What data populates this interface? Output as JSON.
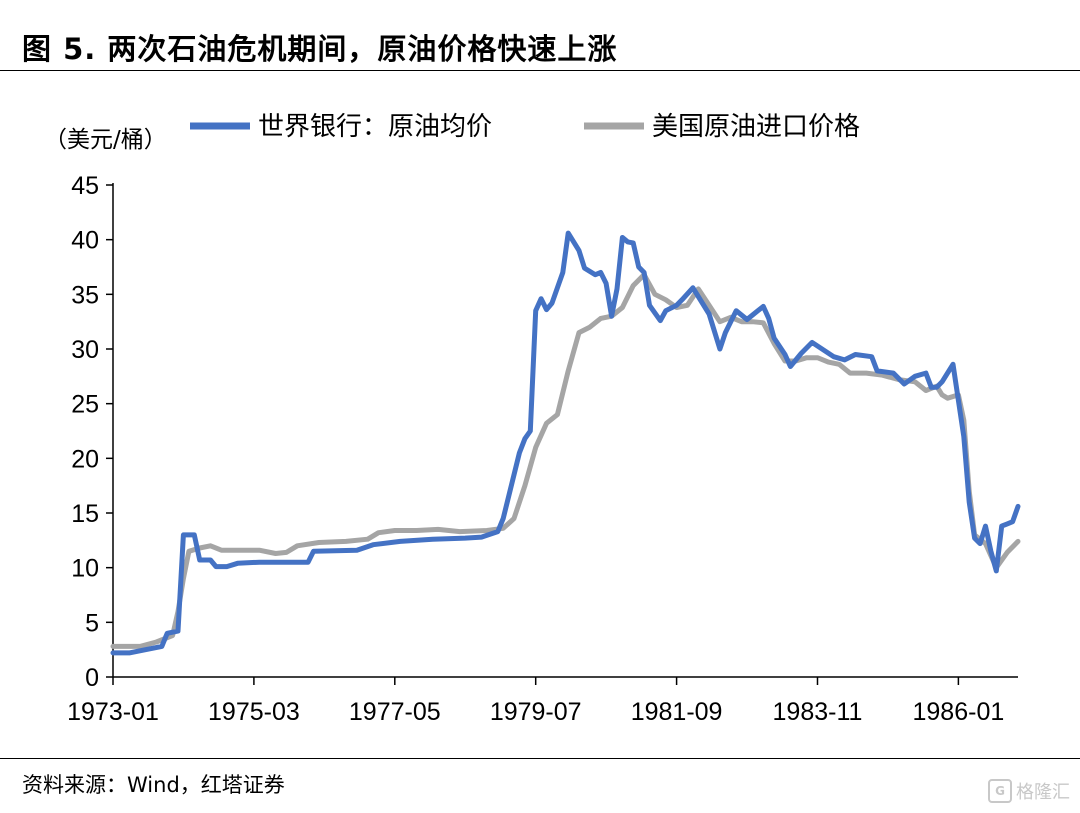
{
  "header": {
    "title": "图 5. 两次石油危机期间，原油价格快速上涨"
  },
  "footer": {
    "source": "资料来源：Wind，红塔证券",
    "watermark": "格隆汇",
    "watermark_icon": "G"
  },
  "colors": {
    "world_bank": "#4472C4",
    "us_import": "#A5A5A5"
  },
  "chart_data": {
    "type": "line",
    "unit_label": "（美元/桶）",
    "ylim": [
      0,
      45
    ],
    "yticks": [
      0,
      5,
      10,
      15,
      20,
      25,
      30,
      35,
      40,
      45
    ],
    "xticks": [
      "1973-01",
      "1975-03",
      "1977-05",
      "1979-07",
      "1981-09",
      "1983-11",
      "1986-01"
    ],
    "x_range": [
      "1973-01",
      "1986-12"
    ],
    "legend_position": "top",
    "grid": false,
    "series": [
      {
        "name": "世界银行：原油均价",
        "color": "#4472C4",
        "points": [
          [
            "1973-01",
            2.2
          ],
          [
            "1973-04",
            2.2
          ],
          [
            "1973-07",
            2.5
          ],
          [
            "1973-10",
            2.8
          ],
          [
            "1973-11",
            4.0
          ],
          [
            "1974-01",
            4.2
          ],
          [
            "1974-02",
            13.0
          ],
          [
            "1974-04",
            13.0
          ],
          [
            "1974-05",
            10.7
          ],
          [
            "1974-07",
            10.7
          ],
          [
            "1974-08",
            10.1
          ],
          [
            "1974-10",
            10.1
          ],
          [
            "1974-12",
            10.4
          ],
          [
            "1975-04",
            10.5
          ],
          [
            "1975-09",
            10.5
          ],
          [
            "1976-01",
            10.5
          ],
          [
            "1976-02",
            11.5
          ],
          [
            "1976-10",
            11.6
          ],
          [
            "1977-01",
            12.1
          ],
          [
            "1977-06",
            12.4
          ],
          [
            "1977-12",
            12.6
          ],
          [
            "1978-06",
            12.7
          ],
          [
            "1978-09",
            12.8
          ],
          [
            "1978-12",
            13.3
          ],
          [
            "1979-01",
            14.5
          ],
          [
            "1979-02",
            16.5
          ],
          [
            "1979-04",
            20.5
          ],
          [
            "1979-05",
            21.8
          ],
          [
            "1979-06",
            22.5
          ],
          [
            "1979-07",
            33.5
          ],
          [
            "1979-08",
            34.6
          ],
          [
            "1979-09",
            33.6
          ],
          [
            "1979-10",
            34.2
          ],
          [
            "1979-12",
            37.0
          ],
          [
            "1980-01",
            40.6
          ],
          [
            "1980-03",
            39.0
          ],
          [
            "1980-04",
            37.4
          ],
          [
            "1980-06",
            36.8
          ],
          [
            "1980-07",
            37.0
          ],
          [
            "1980-08",
            36.0
          ],
          [
            "1980-09",
            33.0
          ],
          [
            "1980-10",
            35.5
          ],
          [
            "1980-11",
            40.2
          ],
          [
            "1980-12",
            39.8
          ],
          [
            "1981-01",
            39.7
          ],
          [
            "1981-02",
            37.5
          ],
          [
            "1981-03",
            37.0
          ],
          [
            "1981-04",
            34.0
          ],
          [
            "1981-06",
            32.6
          ],
          [
            "1981-07",
            33.5
          ],
          [
            "1981-09",
            34.0
          ],
          [
            "1981-10",
            34.5
          ],
          [
            "1981-12",
            35.6
          ],
          [
            "1982-03",
            33.2
          ],
          [
            "1982-05",
            30.0
          ],
          [
            "1982-06",
            31.5
          ],
          [
            "1982-08",
            33.5
          ],
          [
            "1982-10",
            32.7
          ],
          [
            "1982-12",
            33.5
          ],
          [
            "1983-01",
            33.9
          ],
          [
            "1983-02",
            32.8
          ],
          [
            "1983-03",
            31.0
          ],
          [
            "1983-05",
            29.5
          ],
          [
            "1983-06",
            28.4
          ],
          [
            "1983-08",
            29.6
          ],
          [
            "1983-10",
            30.6
          ],
          [
            "1984-02",
            29.3
          ],
          [
            "1984-04",
            29.0
          ],
          [
            "1984-06",
            29.5
          ],
          [
            "1984-09",
            29.3
          ],
          [
            "1984-10",
            28.0
          ],
          [
            "1985-01",
            27.8
          ],
          [
            "1985-03",
            26.8
          ],
          [
            "1985-05",
            27.5
          ],
          [
            "1985-07",
            27.8
          ],
          [
            "1985-08",
            26.5
          ],
          [
            "1985-09",
            26.5
          ],
          [
            "1985-10",
            27.0
          ],
          [
            "1985-12",
            28.6
          ],
          [
            "1986-02",
            22.0
          ],
          [
            "1986-03",
            16.0
          ],
          [
            "1986-04",
            12.7
          ],
          [
            "1986-05",
            12.2
          ],
          [
            "1986-06",
            13.8
          ],
          [
            "1986-07",
            11.5
          ],
          [
            "1986-08",
            9.7
          ],
          [
            "1986-09",
            13.8
          ],
          [
            "1986-10",
            14.0
          ],
          [
            "1986-11",
            14.2
          ],
          [
            "1986-12",
            15.6
          ]
        ]
      },
      {
        "name": "美国原油进口价格",
        "color": "#A5A5A5",
        "points": [
          [
            "1973-01",
            2.8
          ],
          [
            "1973-06",
            2.8
          ],
          [
            "1973-09",
            3.2
          ],
          [
            "1973-12",
            3.8
          ],
          [
            "1974-01",
            6.0
          ],
          [
            "1974-02",
            9.0
          ],
          [
            "1974-03",
            11.5
          ],
          [
            "1974-05",
            11.8
          ],
          [
            "1974-07",
            12.0
          ],
          [
            "1974-09",
            11.6
          ],
          [
            "1974-12",
            11.6
          ],
          [
            "1975-04",
            11.6
          ],
          [
            "1975-07",
            11.3
          ],
          [
            "1975-09",
            11.4
          ],
          [
            "1975-11",
            12.0
          ],
          [
            "1976-03",
            12.3
          ],
          [
            "1976-08",
            12.4
          ],
          [
            "1976-12",
            12.6
          ],
          [
            "1977-02",
            13.2
          ],
          [
            "1977-05",
            13.4
          ],
          [
            "1977-09",
            13.4
          ],
          [
            "1978-01",
            13.5
          ],
          [
            "1978-05",
            13.3
          ],
          [
            "1978-10",
            13.4
          ],
          [
            "1979-01",
            13.6
          ],
          [
            "1979-03",
            14.5
          ],
          [
            "1979-05",
            17.5
          ],
          [
            "1979-07",
            21.0
          ],
          [
            "1979-09",
            23.2
          ],
          [
            "1979-11",
            24.0
          ],
          [
            "1980-01",
            28.0
          ],
          [
            "1980-03",
            31.5
          ],
          [
            "1980-05",
            32.0
          ],
          [
            "1980-07",
            32.8
          ],
          [
            "1980-09",
            33.0
          ],
          [
            "1980-11",
            33.8
          ],
          [
            "1981-01",
            35.8
          ],
          [
            "1981-03",
            36.8
          ],
          [
            "1981-05",
            35.0
          ],
          [
            "1981-07",
            34.5
          ],
          [
            "1981-09",
            33.8
          ],
          [
            "1981-11",
            34.0
          ],
          [
            "1982-01",
            35.5
          ],
          [
            "1982-03",
            34.0
          ],
          [
            "1982-05",
            32.5
          ],
          [
            "1982-07",
            32.9
          ],
          [
            "1982-09",
            32.5
          ],
          [
            "1982-11",
            32.5
          ],
          [
            "1983-01",
            32.4
          ],
          [
            "1983-03",
            30.5
          ],
          [
            "1983-05",
            28.9
          ],
          [
            "1983-07",
            28.9
          ],
          [
            "1983-09",
            29.2
          ],
          [
            "1983-11",
            29.2
          ],
          [
            "1984-01",
            28.8
          ],
          [
            "1984-03",
            28.6
          ],
          [
            "1984-05",
            27.8
          ],
          [
            "1984-08",
            27.8
          ],
          [
            "1984-11",
            27.6
          ],
          [
            "1985-02",
            27.2
          ],
          [
            "1985-05",
            27.0
          ],
          [
            "1985-07",
            26.2
          ],
          [
            "1985-09",
            26.6
          ],
          [
            "1985-10",
            25.8
          ],
          [
            "1985-11",
            25.5
          ],
          [
            "1986-01",
            25.8
          ],
          [
            "1986-02",
            23.5
          ],
          [
            "1986-03",
            17.0
          ],
          [
            "1986-04",
            13.0
          ],
          [
            "1986-06",
            12.2
          ],
          [
            "1986-08",
            10.0
          ],
          [
            "1986-10",
            11.4
          ],
          [
            "1986-12",
            12.4
          ]
        ]
      }
    ]
  }
}
